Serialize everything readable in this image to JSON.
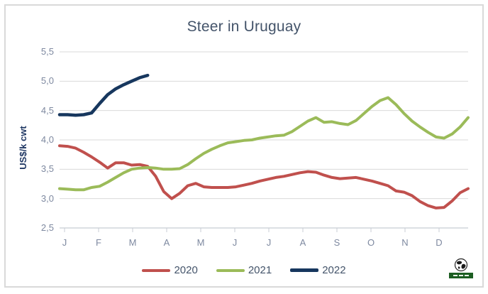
{
  "title": "Steer in Uruguay",
  "y_axis": {
    "title": "US$/k cwt",
    "tick_labels": [
      "5,5",
      "5,0",
      "4,5",
      "4,0",
      "3,5",
      "3,0",
      "2,5"
    ]
  },
  "x_axis": {
    "tick_labels": [
      "J",
      "F",
      "M",
      "A",
      "M",
      "J",
      "J",
      "A",
      "S",
      "O",
      "N",
      "D"
    ]
  },
  "legend": [
    {
      "label": "2020",
      "color": "#C0504D"
    },
    {
      "label": "2021",
      "color": "#9BBB59"
    },
    {
      "label": "2022",
      "color": "#17375E"
    }
  ],
  "logo": {
    "icon": "globe-icon",
    "banner_color": "#1C5E22"
  },
  "colors": {
    "title_text": "#44546A",
    "axis_text": "#7E89A0",
    "gridline": "#D9D9D9",
    "axis_line": "#C8CDD4",
    "frame_border": "#D9D9D9"
  },
  "chart_data": {
    "type": "line",
    "title": "Steer in Uruguay",
    "xlabel": "",
    "ylabel": "US$/k cwt",
    "ylim": [
      2.5,
      5.5
    ],
    "y_tick_step": 0.5,
    "decimal_separator": ",",
    "grid": true,
    "legend_position": "bottom",
    "x_unit": "week",
    "points_per_year": 52,
    "month_labels": [
      "J",
      "F",
      "M",
      "A",
      "M",
      "J",
      "J",
      "A",
      "S",
      "O",
      "N",
      "D"
    ],
    "series": [
      {
        "name": "2020",
        "color": "#C0504D",
        "values": [
          3.9,
          3.89,
          3.86,
          3.79,
          3.71,
          3.62,
          3.52,
          3.61,
          3.61,
          3.57,
          3.58,
          3.55,
          3.38,
          3.12,
          3.0,
          3.09,
          3.22,
          3.26,
          3.2,
          3.19,
          3.19,
          3.19,
          3.2,
          3.23,
          3.26,
          3.3,
          3.33,
          3.36,
          3.38,
          3.41,
          3.44,
          3.46,
          3.45,
          3.4,
          3.36,
          3.34,
          3.35,
          3.36,
          3.33,
          3.3,
          3.26,
          3.22,
          3.13,
          3.11,
          3.05,
          2.95,
          2.88,
          2.84,
          2.85,
          2.96,
          3.1,
          3.17
        ]
      },
      {
        "name": "2021",
        "color": "#9BBB59",
        "values": [
          3.17,
          3.16,
          3.15,
          3.15,
          3.19,
          3.21,
          3.28,
          3.36,
          3.44,
          3.5,
          3.52,
          3.53,
          3.52,
          3.5,
          3.5,
          3.51,
          3.58,
          3.68,
          3.77,
          3.84,
          3.9,
          3.95,
          3.97,
          3.99,
          4.0,
          4.03,
          4.05,
          4.07,
          4.08,
          4.14,
          4.23,
          4.32,
          4.38,
          4.3,
          4.31,
          4.28,
          4.26,
          4.33,
          4.45,
          4.57,
          4.67,
          4.72,
          4.6,
          4.45,
          4.32,
          4.22,
          4.13,
          4.05,
          4.03,
          4.1,
          4.22,
          4.38
        ]
      },
      {
        "name": "2022",
        "color": "#17375E",
        "values": [
          4.43,
          4.43,
          4.42,
          4.43,
          4.46,
          4.62,
          4.77,
          4.87,
          4.94,
          5.0,
          5.06,
          5.1
        ]
      }
    ]
  }
}
